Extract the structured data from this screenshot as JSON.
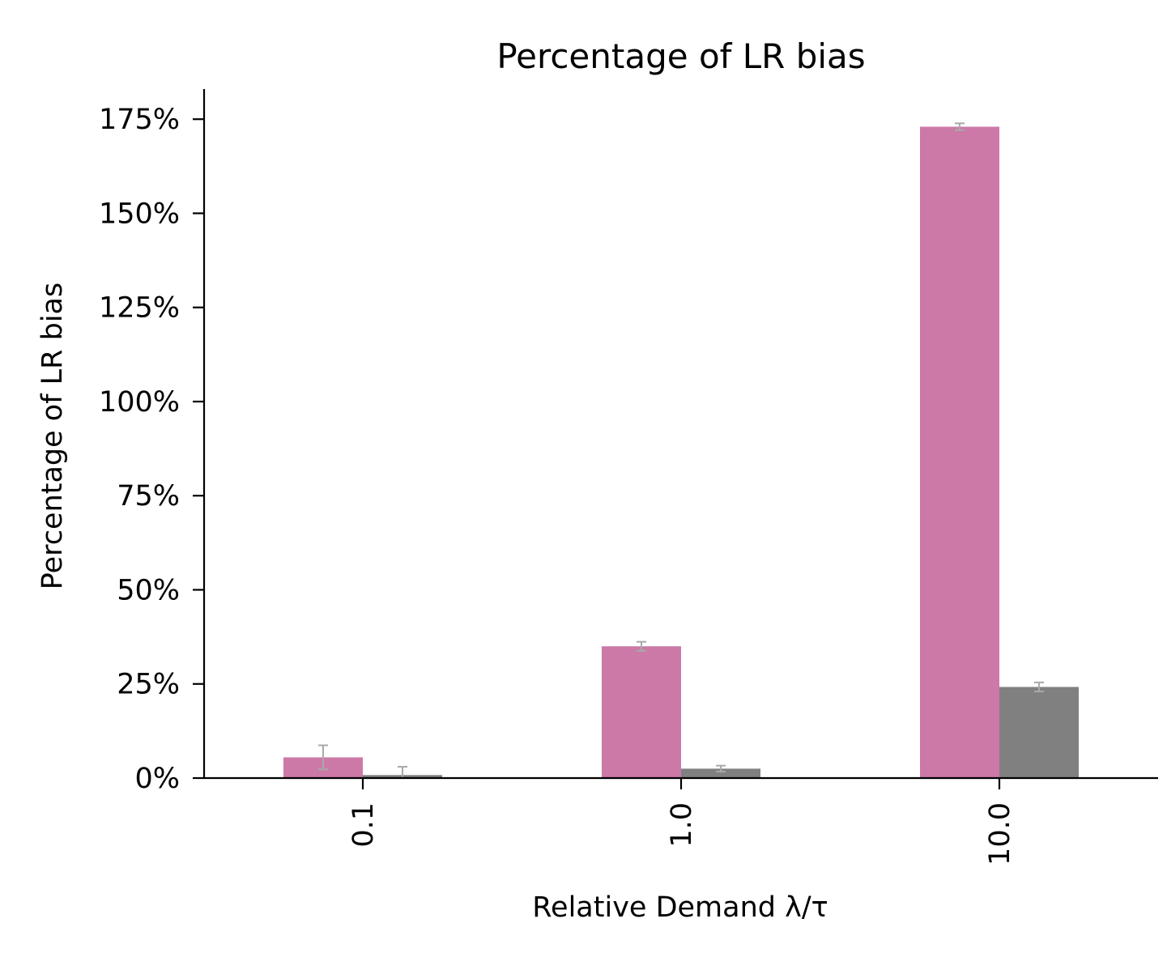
{
  "chart_data": {
    "type": "bar",
    "title": "Percentage of LR bias",
    "xlabel": "Relative Demand λ/τ",
    "ylabel": "Percentage of LR bias",
    "categories": [
      "0.1",
      "1.0",
      "10.0"
    ],
    "series": [
      {
        "color": "#cc79a7",
        "values": [
          5.5,
          35.0,
          173.0
        ],
        "errors": [
          3.2,
          1.2,
          0.9
        ]
      },
      {
        "color": "#808080",
        "values": [
          0.8,
          2.5,
          24.2
        ],
        "errors": [
          2.2,
          0.8,
          1.2
        ]
      }
    ],
    "ylim": [
      0,
      183
    ],
    "yticks": [
      0,
      25,
      50,
      75,
      100,
      125,
      150,
      175
    ],
    "ytick_labels": [
      "0%",
      "25%",
      "50%",
      "75%",
      "100%",
      "125%",
      "150%",
      "175%"
    ],
    "error_bar_color": "#a9a9a9",
    "grid": false,
    "legend": "none"
  }
}
